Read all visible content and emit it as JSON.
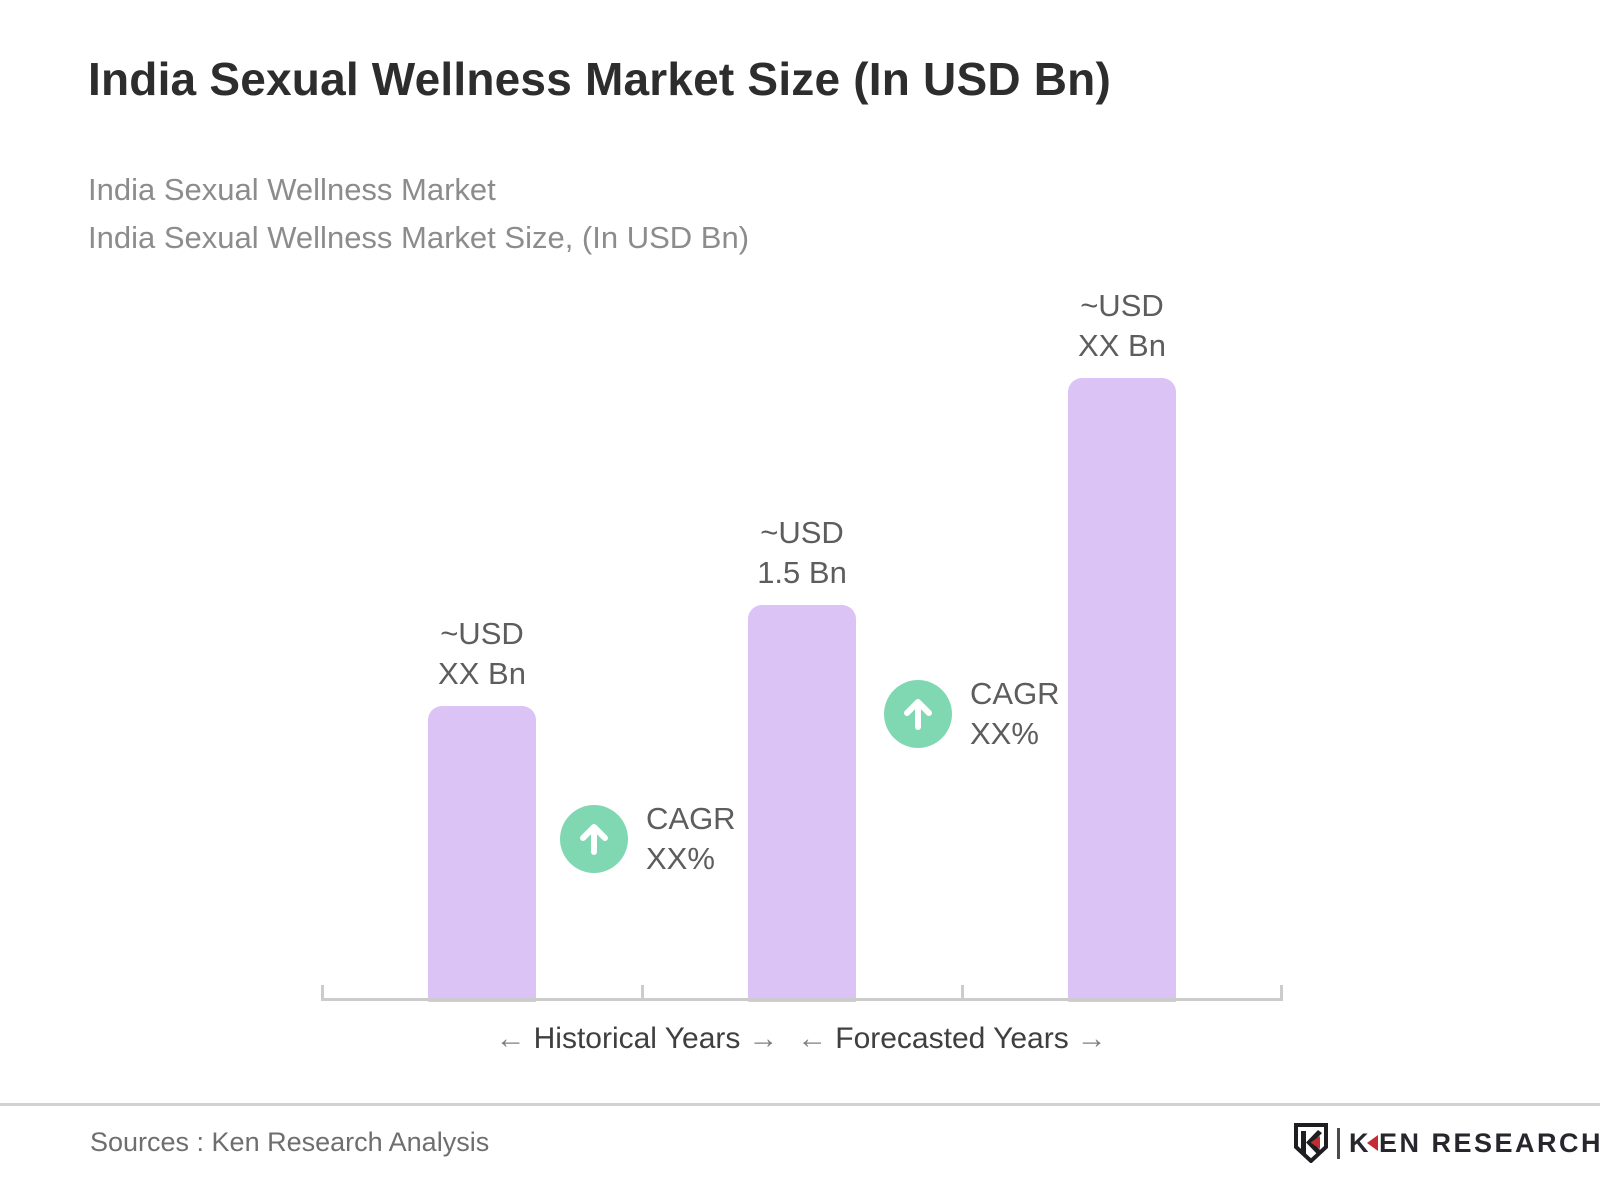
{
  "slide": {
    "title": "India Sexual Wellness Market Size (In USD Bn)",
    "subtitle_line1": "India Sexual Wellness Market",
    "subtitle_line2": "India Sexual Wellness Market Size, (In USD Bn)"
  },
  "chart_data": {
    "type": "bar",
    "title": "India Sexual Wellness Market Size (In USD Bn)",
    "unit": "USD Bn",
    "value_axis_visible": false,
    "grid": false,
    "bars": [
      {
        "label_line1": "~USD",
        "label_line2": "XX Bn",
        "value_display": "~USD XX Bn",
        "height_ratio": 0.474,
        "period": "Historical Years"
      },
      {
        "label_line1": "~USD",
        "label_line2": "1.5 Bn",
        "value_display": "~USD 1.5 Bn",
        "value_numeric_usd_bn": 1.5,
        "height_ratio": 0.636,
        "period": "Historical Years"
      },
      {
        "label_line1": "~USD",
        "label_line2": "XX Bn",
        "value_display": "~USD XX Bn",
        "height_ratio": 1.0,
        "period": "Forecasted Years"
      }
    ],
    "cagr_annotations": [
      {
        "line1": "CAGR",
        "line2": "XX%",
        "icon": "up-arrow-circle",
        "between_bars": [
          1,
          2
        ]
      },
      {
        "line1": "CAGR",
        "line2": "XX%",
        "icon": "up-arrow-circle",
        "between_bars": [
          2,
          3
        ]
      }
    ],
    "axis_legends": [
      {
        "left_arrow": "←",
        "label": "Historical Years",
        "right_arrow": "→"
      },
      {
        "left_arrow": "←",
        "label": "Forecasted Years",
        "right_arrow": "→"
      }
    ]
  },
  "footer": {
    "sources": "Sources : Ken Research Analysis",
    "logo": {
      "emblem_letter": "K",
      "wordmark_first_letter": "K",
      "wordmark_rest": "EN RESEARCH"
    }
  },
  "colors": {
    "bar-fill": "#dcc3f6",
    "badge-green": "#80d8b3",
    "title-text": "#2d2d2d",
    "subtitle-text": "#8c8c8c",
    "label-text": "#5d5d5d",
    "axis-line": "#cccccc",
    "legend-arrow": "#7f7f7f",
    "legend-text": "#3f3f3f",
    "divider": "#d2d2d2",
    "source-text": "#6e6e6e",
    "logo-dark": "#26262c",
    "logo-red": "#c52b33"
  }
}
